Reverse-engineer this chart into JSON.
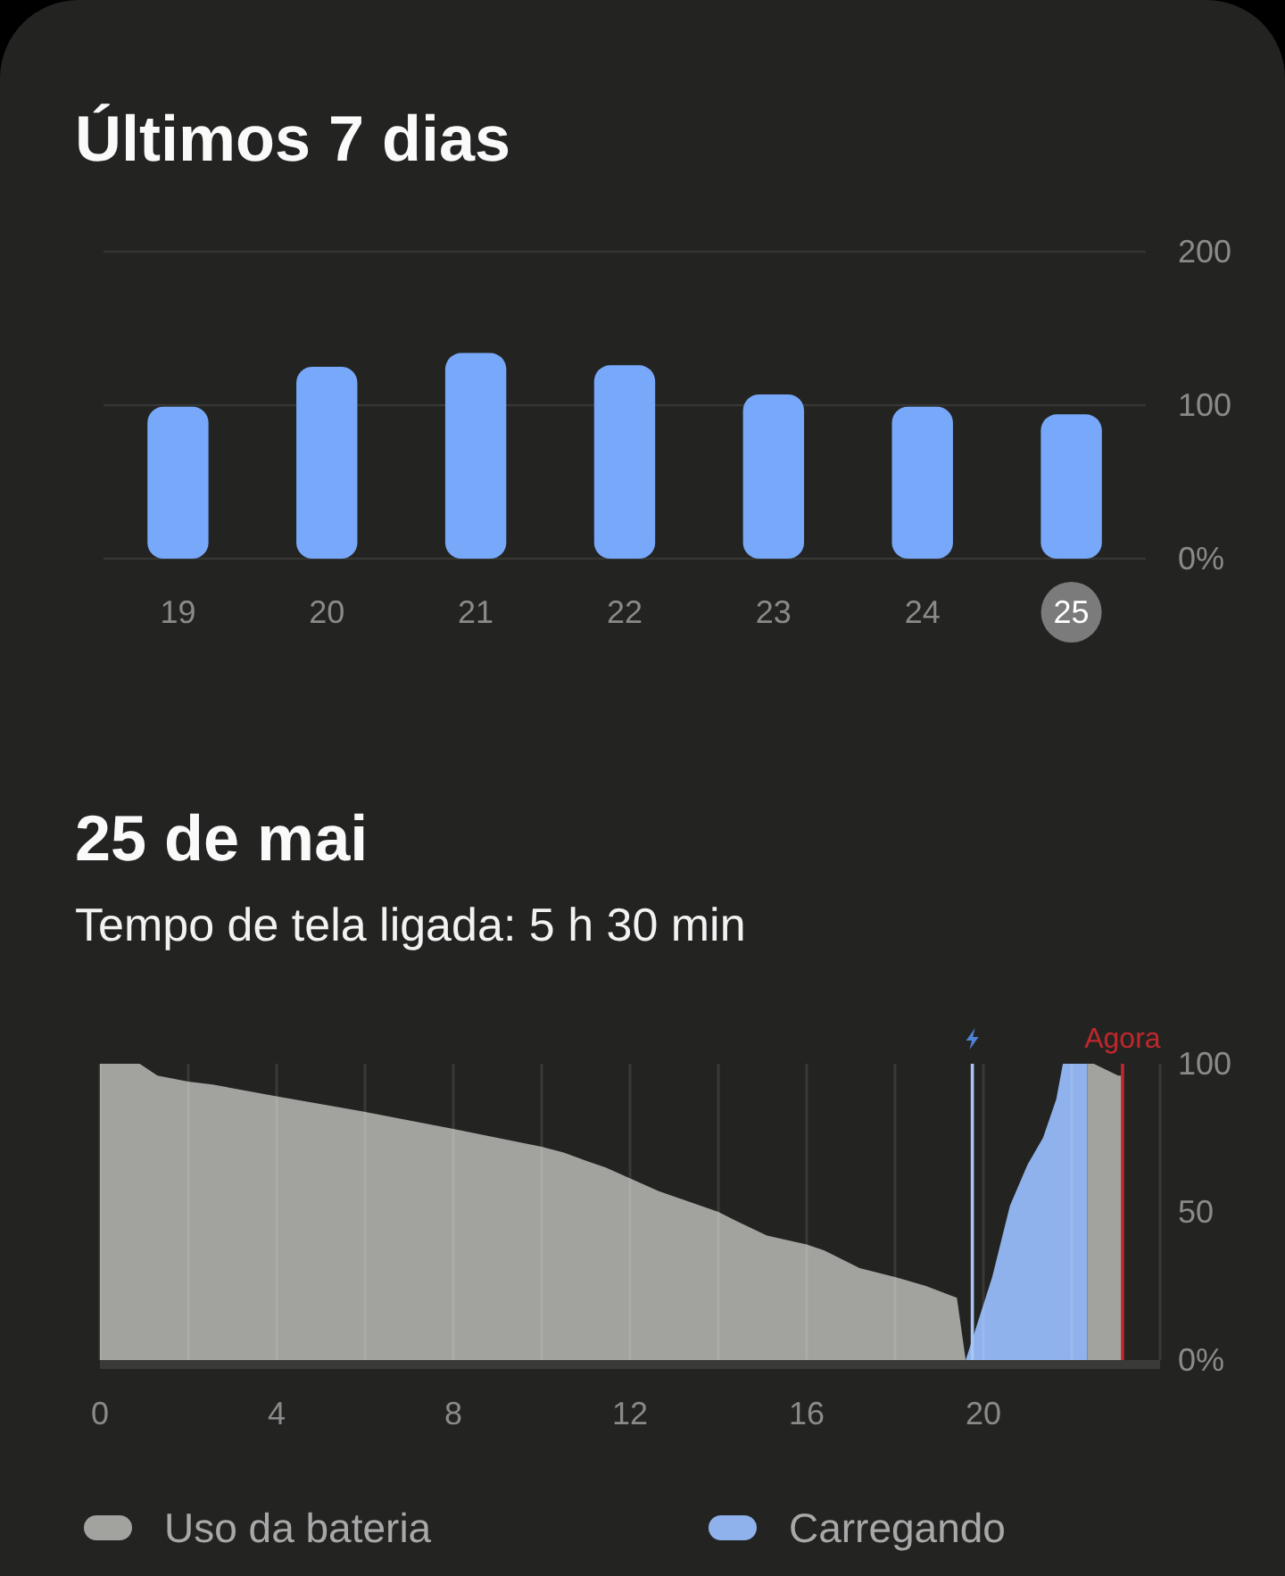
{
  "chart_data": [
    {
      "type": "bar",
      "title": "Últimos 7 dias",
      "categories": [
        "19",
        "20",
        "21",
        "22",
        "23",
        "24",
        "25"
      ],
      "values": [
        99,
        125,
        134,
        126,
        107,
        99,
        94
      ],
      "color": "#77a8f9",
      "ylim": [
        0,
        200
      ],
      "yticks": [
        {
          "value": 0,
          "label": "0%"
        },
        100,
        200
      ],
      "grid": "y"
    },
    {
      "type": "area",
      "title": "25 de mai",
      "subtitle": "Tempo de tela ligada: 5 h 30 min",
      "xlim": [
        0,
        24
      ],
      "xticks": [
        0,
        {
          "value": 2,
          "label": null
        },
        4,
        {
          "value": 6,
          "label": null
        },
        8,
        {
          "value": 10,
          "label": null
        },
        12,
        {
          "value": 14,
          "label": null
        },
        16,
        {
          "value": 18,
          "label": null
        },
        20,
        {
          "value": 22,
          "label": null
        },
        {
          "value": 24,
          "label": null
        }
      ],
      "ylim": [
        0,
        100
      ],
      "yticks": [
        {
          "value": 0,
          "label": "0%"
        },
        50,
        100
      ],
      "grid": "x",
      "legend": "bottom",
      "series": [
        {
          "name": "Uso da bateria",
          "color": "#a2a39f",
          "x": [
            0,
            0.9,
            1.3,
            2.0,
            2.55,
            4.0,
            5.9,
            8.0,
            10.0,
            10.5,
            11.05,
            11.45,
            12.05,
            12.65,
            14.0,
            14.4,
            15.1,
            16.0,
            16.4,
            17.2,
            18.0,
            18.7,
            19.4,
            19.6,
            21.0,
            22.35,
            22.5,
            23.05,
            23.15
          ],
          "values": [
            100,
            100,
            96,
            94,
            93,
            89,
            84,
            78,
            72,
            70,
            67,
            65,
            61,
            57,
            50,
            47,
            42,
            39,
            37,
            31,
            28,
            25,
            21,
            0,
            null,
            100,
            100,
            96,
            96
          ]
        },
        {
          "name": "Carregando",
          "color": "#8fb2ec",
          "x": [
            19.6,
            20.2,
            20.6,
            21.0,
            21.35,
            21.65,
            21.8,
            22.35
          ],
          "values": [
            0,
            28,
            52,
            66,
            75,
            88,
            100,
            100
          ]
        }
      ],
      "ref_lines": [
        {
          "axis": "x",
          "value": 19.75,
          "color": "#a9c6f2"
        },
        {
          "axis": "x",
          "value": 23.15,
          "label": "Agora",
          "color": "#c1272d"
        }
      ]
    }
  ]
}
